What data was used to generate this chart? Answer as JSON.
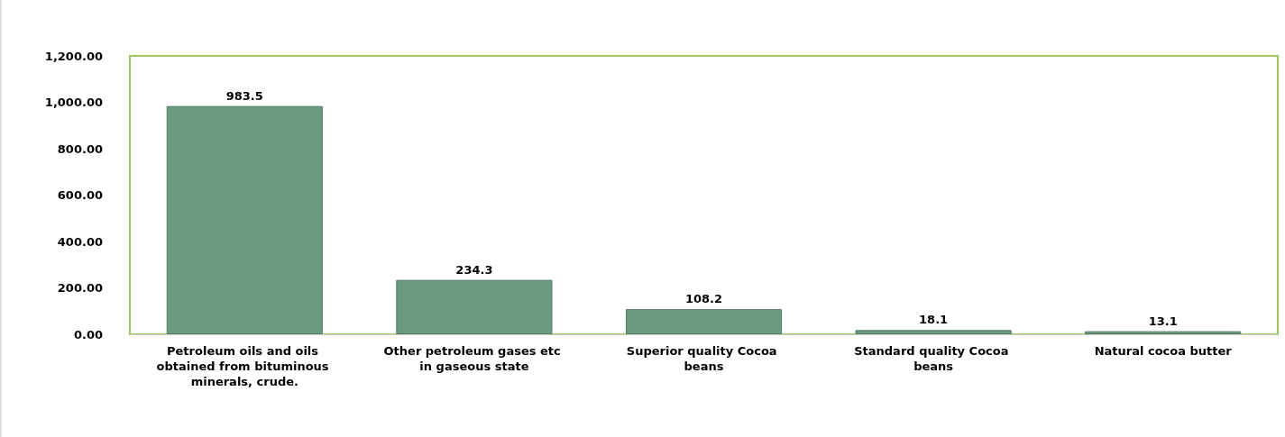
{
  "chart_data": {
    "type": "bar",
    "categories": [
      "Petroleum oils and oils obtained from bituminous minerals, crude.",
      "Other petroleum gases etc in gaseous state",
      "Superior quality Cocoa beans",
      "Standard quality Cocoa beans",
      "Natural cocoa butter"
    ],
    "values": [
      983.5,
      234.3,
      108.2,
      18.1,
      13.1
    ],
    "color": "#6a9a80",
    "ylim": [
      0,
      1200
    ],
    "yticks": [
      {
        "value": 0,
        "label": "0.00"
      },
      {
        "value": 200,
        "label": "200.00"
      },
      {
        "value": 400,
        "label": "400.00"
      },
      {
        "value": 600,
        "label": "600.00"
      },
      {
        "value": 800,
        "label": "800.00"
      },
      {
        "value": 1000,
        "label": "1,000.00"
      },
      {
        "value": 1200,
        "label": "1,200.00"
      }
    ],
    "data_labels": true,
    "grid": false
  }
}
